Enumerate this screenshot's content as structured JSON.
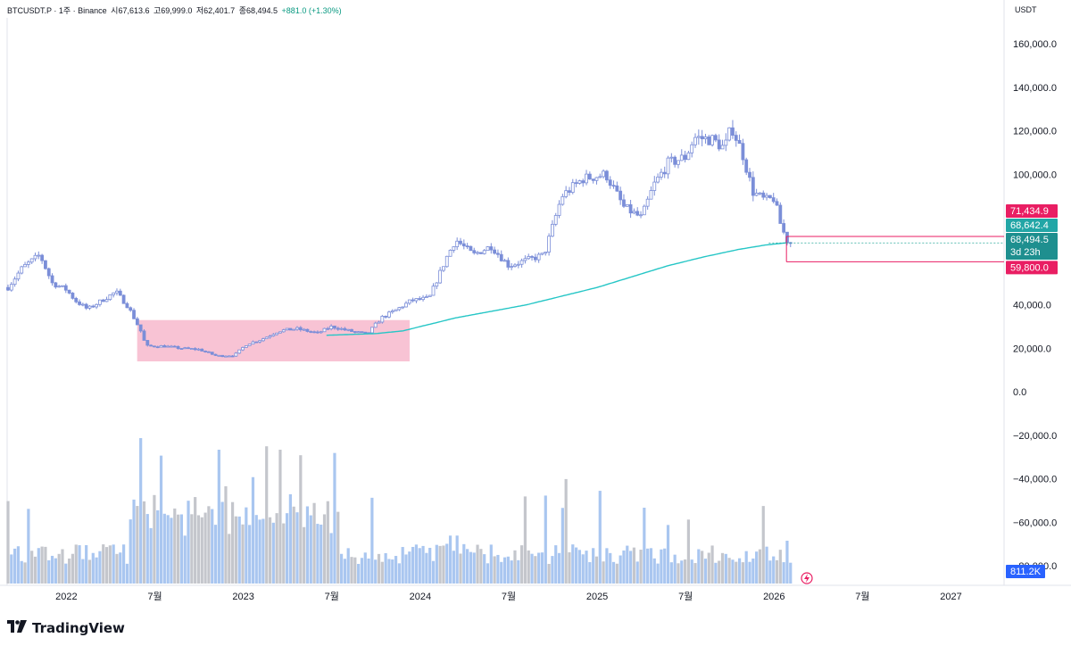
{
  "legend": {
    "symbol": "BTCUSDT.P · 1주 · Binance",
    "open": "시67,613.6",
    "high": "고69,999.0",
    "low": "저62,401.7",
    "close": "종68,494.5",
    "change": "+881.0 (+1.30%)"
  },
  "currency_label": "USDT",
  "brand": "TradingView",
  "colors": {
    "candle": "#7b8ed8",
    "ma": "#26c6c6",
    "zone": "#f7b8cc",
    "level": "#e91e63",
    "teal_label": "#22a6a6",
    "volume_blue": "#a9c6f0",
    "volume_gray": "#c4c6cc"
  },
  "price_labels": {
    "upper": "71,434.9",
    "ma": "68,642.4",
    "last": "68,494.5",
    "countdown": "3d 23h",
    "lower": "59,800.0",
    "volume": "811.2K"
  },
  "chart_data": {
    "type": "candlestick",
    "interval": "1W",
    "yaxis_ticks": [
      "160,000.0",
      "140,000.0",
      "120,000.0",
      "100,000.0",
      "40,000.0",
      "20,000.0",
      "0.0",
      "−20,000.0",
      "−40,000.0",
      "−60,000.0",
      "−80,000.0"
    ],
    "ytick_values": [
      160000,
      140000,
      120000,
      100000,
      40000,
      20000,
      0,
      -20000,
      -40000,
      -60000,
      -80000
    ],
    "ylim": [
      -89000,
      172000
    ],
    "xaxis_ticks": [
      {
        "label": "2022",
        "t": 2022.0
      },
      {
        "label": "7월",
        "t": 2022.5
      },
      {
        "label": "2023",
        "t": 2023.0
      },
      {
        "label": "7월",
        "t": 2023.5
      },
      {
        "label": "2024",
        "t": 2024.0
      },
      {
        "label": "7월",
        "t": 2024.5
      },
      {
        "label": "2025",
        "t": 2025.0
      },
      {
        "label": "7월",
        "t": 2025.5
      },
      {
        "label": "2026",
        "t": 2026.0
      },
      {
        "label": "7월",
        "t": 2026.5
      },
      {
        "label": "2027",
        "t": 2027.0
      }
    ],
    "xlim": [
      2021.665,
      2027.3
    ],
    "price_path": [
      [
        2021.67,
        48000
      ],
      [
        2021.75,
        57000
      ],
      [
        2021.85,
        63000
      ],
      [
        2021.92,
        50000
      ],
      [
        2022.0,
        47000
      ],
      [
        2022.05,
        42000
      ],
      [
        2022.12,
        38000
      ],
      [
        2022.2,
        42000
      ],
      [
        2022.28,
        46000
      ],
      [
        2022.35,
        39000
      ],
      [
        2022.42,
        28000
      ],
      [
        2022.45,
        21000
      ],
      [
        2022.55,
        21000
      ],
      [
        2022.65,
        20000
      ],
      [
        2022.75,
        19500
      ],
      [
        2022.85,
        16500
      ],
      [
        2022.95,
        16800
      ],
      [
        2023.02,
        22000
      ],
      [
        2023.1,
        24000
      ],
      [
        2023.2,
        28000
      ],
      [
        2023.3,
        29000
      ],
      [
        2023.42,
        27000
      ],
      [
        2023.5,
        30000
      ],
      [
        2023.6,
        28000
      ],
      [
        2023.7,
        26500
      ],
      [
        2023.78,
        34000
      ],
      [
        2023.85,
        37000
      ],
      [
        2023.95,
        42000
      ],
      [
        2024.05,
        43000
      ],
      [
        2024.15,
        62000
      ],
      [
        2024.2,
        70000
      ],
      [
        2024.3,
        63000
      ],
      [
        2024.4,
        67000
      ],
      [
        2024.5,
        58000
      ],
      [
        2024.58,
        60000
      ],
      [
        2024.7,
        63000
      ],
      [
        2024.8,
        90000
      ],
      [
        2024.92,
        98000
      ],
      [
        2025.05,
        100000
      ],
      [
        2025.15,
        85000
      ],
      [
        2025.25,
        80000
      ],
      [
        2025.32,
        95000
      ],
      [
        2025.4,
        105000
      ],
      [
        2025.5,
        108000
      ],
      [
        2025.55,
        117000
      ],
      [
        2025.65,
        116000
      ],
      [
        2025.72,
        112000
      ],
      [
        2025.76,
        122000
      ],
      [
        2025.82,
        110000
      ],
      [
        2025.88,
        92000
      ],
      [
        2025.95,
        88000
      ],
      [
        2026.0,
        89000
      ],
      [
        2026.04,
        76000
      ],
      [
        2026.08,
        68500
      ],
      [
        2026.11,
        68400
      ]
    ],
    "ma_path": [
      [
        2023.47,
        26000
      ],
      [
        2023.75,
        26800
      ],
      [
        2023.9,
        28000
      ],
      [
        2024.0,
        30000
      ],
      [
        2024.2,
        34000
      ],
      [
        2024.4,
        37000
      ],
      [
        2024.6,
        40000
      ],
      [
        2024.8,
        44000
      ],
      [
        2025.0,
        48000
      ],
      [
        2025.2,
        53000
      ],
      [
        2025.4,
        58000
      ],
      [
        2025.6,
        62000
      ],
      [
        2025.8,
        65500
      ],
      [
        2025.95,
        67500
      ],
      [
        2026.08,
        68600
      ]
    ],
    "zone": {
      "t0": 2022.4,
      "t1": 2023.94,
      "p_low": 14000,
      "p_high": 33000
    },
    "levels": [
      {
        "label": "71,434.9",
        "value": 71434.9,
        "t0": 2026.07
      },
      {
        "label": "59,800.0",
        "value": 59800,
        "t0": 2026.07
      }
    ],
    "volume": {
      "scale_max": 1,
      "note": "relative heights"
    }
  }
}
